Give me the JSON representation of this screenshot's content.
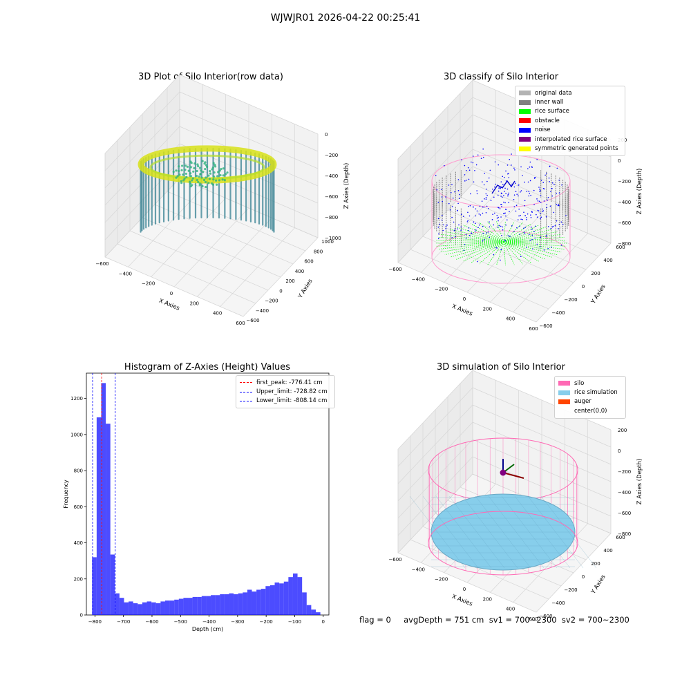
{
  "suptitle": "WJWJR01 2026-04-22 00:25:41",
  "panels": {
    "raw": {
      "title": "3D Plot of Silo Interior(row data)",
      "xlabel": "X Axies",
      "ylabel": "Y Axies",
      "zlabel": "Z Axies (Depth)",
      "x_ticks": [
        "−600",
        "−400",
        "−200",
        "0",
        "200",
        "400",
        "600"
      ],
      "y_ticks": [
        "−600",
        "−400",
        "−200",
        "0",
        "200",
        "400",
        "600",
        "800",
        "1000"
      ],
      "z_ticks": [
        "0",
        "−200",
        "−400",
        "−600",
        "−800",
        "−1000"
      ]
    },
    "classify": {
      "title": "3D classify of Silo Interior",
      "xlabel": "X Axies",
      "ylabel": "Y Axies",
      "zlabel": "Z Axies (Depth)",
      "x_ticks": [
        "−600",
        "−400",
        "−200",
        "0",
        "200",
        "400",
        "600"
      ],
      "y_ticks": [
        "−600",
        "−400",
        "−200",
        "0",
        "200",
        "400",
        "600"
      ],
      "z_ticks": [
        "200",
        "0",
        "−200",
        "−400",
        "−600",
        "−800"
      ],
      "legend": [
        {
          "label": "original data",
          "color": "#b3b3b3"
        },
        {
          "label": "inner wall",
          "color": "#808080"
        },
        {
          "label": "rice surface",
          "color": "#00ff00"
        },
        {
          "label": "obstacle",
          "color": "#ff0000"
        },
        {
          "label": "noise",
          "color": "#0000ff"
        },
        {
          "label": "interpolated rice surface",
          "color": "#800080"
        },
        {
          "label": "symmetric generated points",
          "color": "#ffff00"
        }
      ]
    },
    "simulation": {
      "title": "3D simulation of Silo Interior",
      "xlabel": "X Axies",
      "ylabel": "Y Axies",
      "zlabel": "Z Axies (Depth)",
      "x_ticks": [
        "−600",
        "−400",
        "−200",
        "0",
        "200",
        "400",
        "600"
      ],
      "y_ticks": [
        "−600",
        "−400",
        "−200",
        "0",
        "200",
        "400",
        "600"
      ],
      "z_ticks": [
        "200",
        "0",
        "−200",
        "−400",
        "−600",
        "−800"
      ],
      "legend": [
        {
          "label": "silo",
          "color": "#ff69b4"
        },
        {
          "label": "rice simulation",
          "color": "#87ceeb"
        },
        {
          "label": "auger",
          "color": "#ff4500"
        },
        {
          "label": "center(0,0)",
          "color": ""
        }
      ]
    }
  },
  "chart_data": {
    "type": "bar",
    "title": "Histogram of Z-Axies (Height) Values",
    "xlabel": "Depth (cm)",
    "ylabel": "Frequency",
    "xlim": [
      -830,
      20
    ],
    "ylim": [
      0,
      1340
    ],
    "x_ticks": [
      -800,
      -700,
      -600,
      -500,
      -400,
      -300,
      -200,
      -100,
      0
    ],
    "x_tick_labels": [
      "−800",
      "−700",
      "−600",
      "−500",
      "−400",
      "−300",
      "−200",
      "−100",
      "0"
    ],
    "y_ticks": [
      0,
      200,
      400,
      600,
      800,
      1000,
      1200
    ],
    "bin_width": 16,
    "bin_start": -810,
    "values": [
      320,
      1095,
      1285,
      1060,
      335,
      120,
      95,
      70,
      75,
      65,
      60,
      70,
      75,
      70,
      65,
      75,
      80,
      80,
      85,
      90,
      95,
      95,
      100,
      100,
      105,
      105,
      110,
      110,
      115,
      115,
      120,
      115,
      120,
      125,
      140,
      130,
      140,
      145,
      160,
      165,
      180,
      175,
      185,
      210,
      230,
      210,
      125,
      55,
      30,
      15
    ],
    "bar_color": "#0000ff",
    "vlines": [
      {
        "label": "first_peak: -776.41 cm",
        "x": -776.41,
        "color": "#ff0000"
      },
      {
        "label": "Upper_limit: -728.82 cm",
        "x": -728.82,
        "color": "#0000ff"
      },
      {
        "label": "Lower_limit: -808.14 cm",
        "x": -808.14,
        "color": "#0000ff"
      }
    ]
  },
  "footer": "flag = 0     avgDepth = 751 cm  sv1 = 700~2300  sv2 = 700~2300"
}
